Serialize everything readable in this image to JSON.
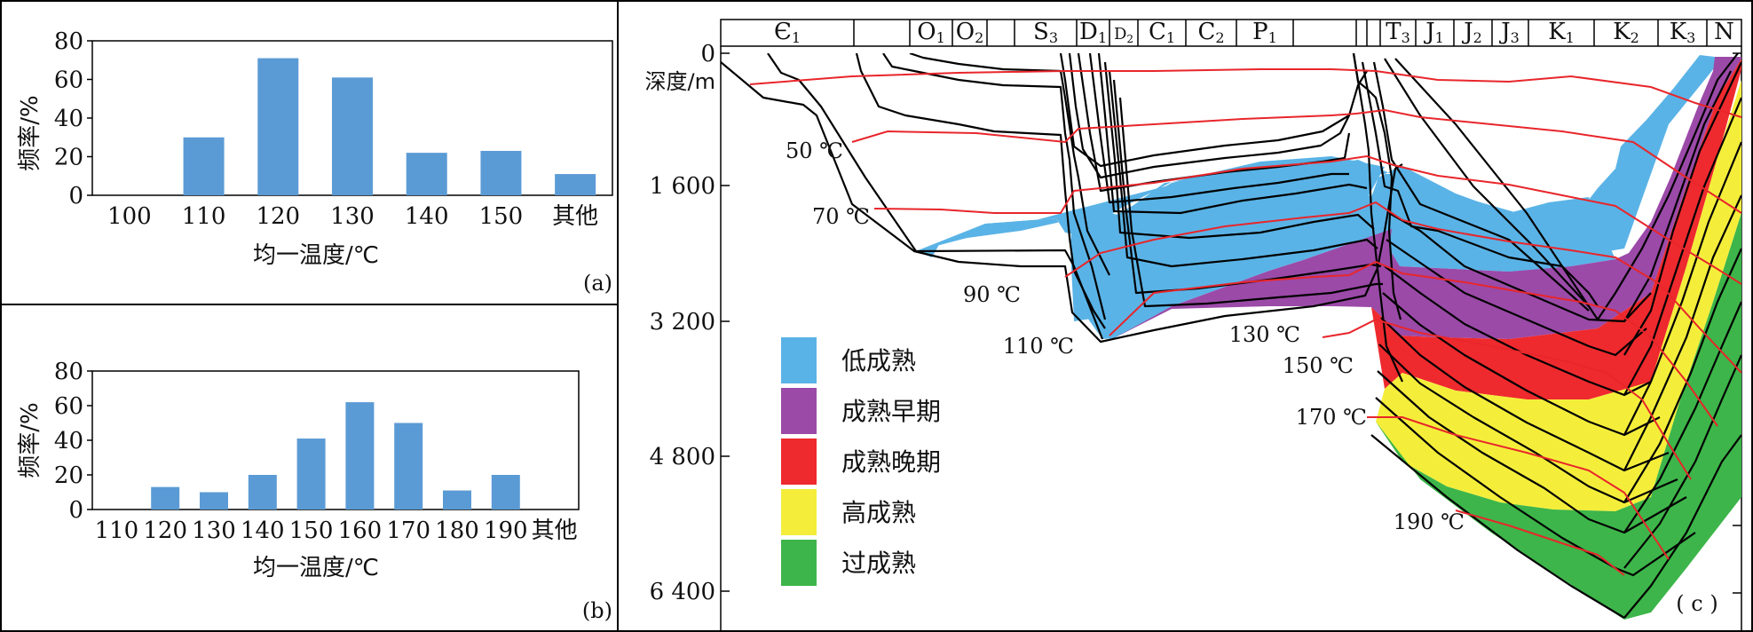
{
  "panels": {
    "a_label": "(a)",
    "b_label": "(b)",
    "c_label": "( c )"
  },
  "colors": {
    "bar": "#5b9bd5",
    "isotherm": "#e8262b",
    "low": "#5ab3e6",
    "early": "#9b4aa8",
    "late": "#ee2a2e",
    "high": "#f4ee3b",
    "over": "#3db54a"
  },
  "chart_data": [
    {
      "type": "bar",
      "panel": "a",
      "categories": [
        "100",
        "110",
        "120",
        "130",
        "140",
        "150",
        "其他"
      ],
      "values": [
        0,
        30,
        71,
        61,
        22,
        23,
        11
      ],
      "xlabel": "均一温度/℃",
      "ylabel": "频率/%",
      "ylim": [
        0,
        80
      ],
      "yticks": [
        "0",
        "20",
        "40",
        "60",
        "80"
      ]
    },
    {
      "type": "bar",
      "panel": "b",
      "categories": [
        "110",
        "120",
        "130",
        "140",
        "150",
        "160",
        "170",
        "180",
        "190",
        "其他"
      ],
      "values": [
        0,
        13,
        10,
        20,
        41,
        62,
        50,
        11,
        20,
        0
      ],
      "xlabel": "均一温度/℃",
      "ylabel": "频率/%",
      "ylim": [
        0,
        80
      ],
      "yticks": [
        "0",
        "20",
        "40",
        "60",
        "80"
      ]
    },
    {
      "type": "area",
      "panel": "c",
      "ylabel": "深度/m",
      "y_inverted": true,
      "yticks": [
        "0",
        "1 600",
        "3 200",
        "4 800",
        "6 400"
      ],
      "strata": [
        "Є1",
        "",
        "O1",
        "O2",
        "S3",
        "D1",
        "D2",
        "C1",
        "C2",
        "P1",
        "",
        "T3",
        "J1",
        "J2",
        "J3",
        "K1",
        "K2",
        "K3",
        "N"
      ],
      "isotherm_labels": [
        "50 ℃",
        "70 ℃",
        "90 ℃",
        "110 ℃",
        "130 ℃",
        "150 ℃",
        "170 ℃",
        "190 ℃"
      ],
      "legend": [
        "低成熟",
        "成熟早期",
        "成熟晚期",
        "高成熟",
        "过成熟"
      ]
    }
  ]
}
